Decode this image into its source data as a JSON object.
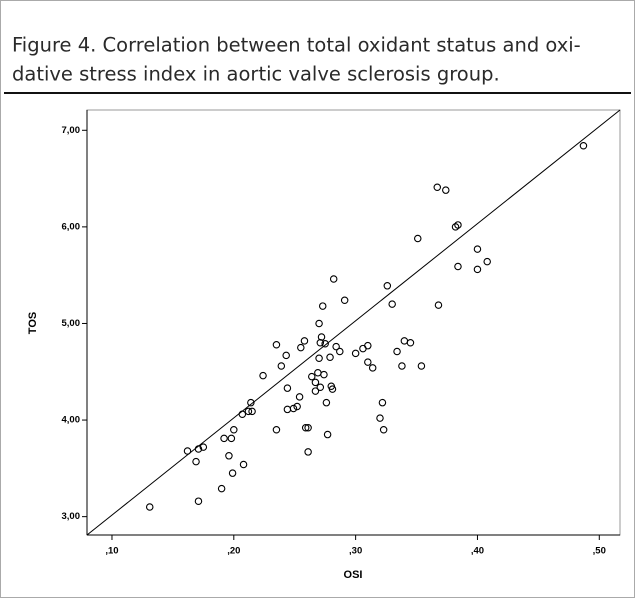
{
  "chart_data": {
    "type": "scatter",
    "caption": [
      "Figure 4.  Correlation between total oxidant status and oxi-",
      "dative stress index in aortic valve sclerosis group."
    ],
    "x_label": "OSI",
    "y_label": "TOS",
    "xlim": [
      0.0795,
      0.517
    ],
    "ylim": [
      2.81,
      7.21
    ],
    "xticks": [
      {
        "value": 0.1,
        "label": ",10"
      },
      {
        "value": 0.2,
        "label": ",20"
      },
      {
        "value": 0.3,
        "label": ",30"
      },
      {
        "value": 0.4,
        "label": ",40"
      },
      {
        "value": 0.5,
        "label": ",50"
      }
    ],
    "yticks": [
      {
        "value": 3,
        "label": "3,00"
      },
      {
        "value": 4,
        "label": "4,00"
      },
      {
        "value": 5,
        "label": "5,00"
      },
      {
        "value": 6,
        "label": "6,00"
      },
      {
        "value": 7,
        "label": "7,00"
      }
    ],
    "color": "#000000",
    "x": [
      0.131,
      0.171,
      0.19,
      0.199,
      0.208,
      0.162,
      0.169,
      0.171,
      0.175,
      0.196,
      0.192,
      0.198,
      0.2,
      0.207,
      0.212,
      0.215,
      0.214,
      0.224,
      0.235,
      0.239,
      0.243,
      0.244,
      0.244,
      0.249,
      0.252,
      0.235,
      0.259,
      0.261,
      0.261,
      0.254,
      0.255,
      0.258,
      0.264,
      0.267,
      0.269,
      0.267,
      0.271,
      0.27,
      0.271,
      0.27,
      0.272,
      0.275,
      0.274,
      0.276,
      0.277,
      0.279,
      0.28,
      0.281,
      0.273,
      0.282,
      0.284,
      0.287,
      0.291,
      0.3,
      0.306,
      0.31,
      0.31,
      0.314,
      0.32,
      0.322,
      0.323,
      0.326,
      0.33,
      0.334,
      0.338,
      0.34,
      0.345,
      0.354,
      0.351,
      0.368,
      0.367,
      0.374,
      0.382,
      0.384,
      0.384,
      0.4,
      0.4,
      0.408,
      0.487
    ],
    "values": [
      3.1,
      3.16,
      3.29,
      3.45,
      3.54,
      3.68,
      3.57,
      3.7,
      3.72,
      3.63,
      3.81,
      3.81,
      3.9,
      4.06,
      4.09,
      4.09,
      4.18,
      4.46,
      4.78,
      4.56,
      4.67,
      4.33,
      4.11,
      4.12,
      4.14,
      3.9,
      3.92,
      3.92,
      3.67,
      4.24,
      4.75,
      4.82,
      4.45,
      4.39,
      4.49,
      4.3,
      4.34,
      4.64,
      4.8,
      5.0,
      4.86,
      4.79,
      4.47,
      4.18,
      3.85,
      4.65,
      4.35,
      4.32,
      5.18,
      5.46,
      4.76,
      4.71,
      5.24,
      4.69,
      4.74,
      4.77,
      4.6,
      4.54,
      4.02,
      4.18,
      3.9,
      5.39,
      5.2,
      4.71,
      4.56,
      4.82,
      4.8,
      4.56,
      5.88,
      5.19,
      6.41,
      6.38,
      6.0,
      6.02,
      5.59,
      5.77,
      5.56,
      5.64,
      6.84
    ],
    "line": {
      "x": [
        0.0795,
        0.517
      ],
      "y": [
        2.81,
        7.21
      ]
    }
  }
}
